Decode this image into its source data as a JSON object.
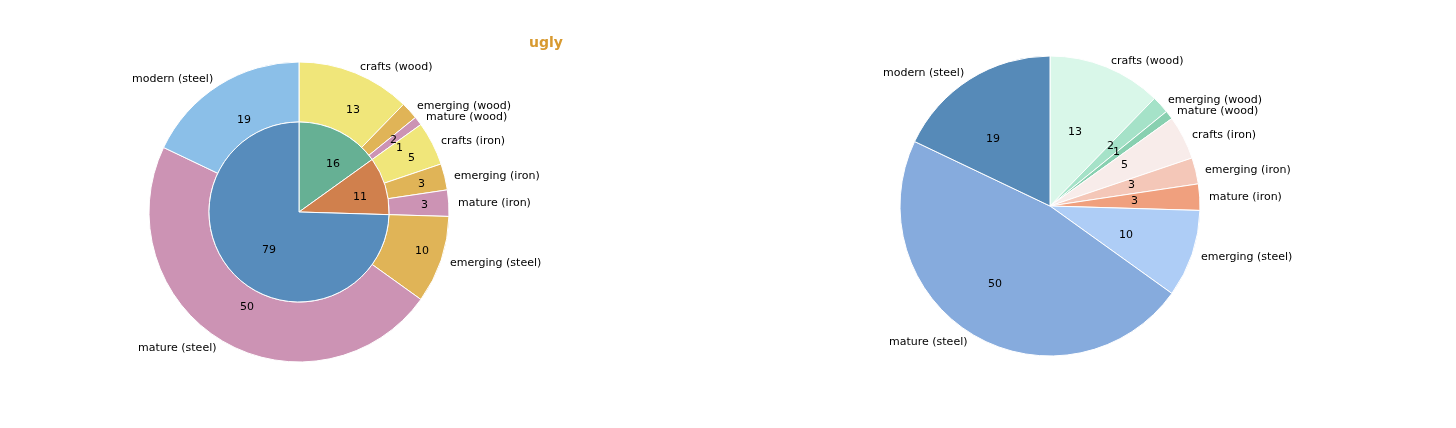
{
  "chart_data": [
    {
      "type": "donut",
      "categories": [
        "crafts (wood)",
        "emerging (wood)",
        "mature (wood)",
        "crafts (iron)",
        "emerging (iron)",
        "mature (iron)",
        "emerging (steel)",
        "mature (steel)",
        "modern (steel)"
      ],
      "series": [
        {
          "values": [
            13,
            2,
            1,
            5,
            3,
            3,
            10,
            50,
            19
          ],
          "colors": [
            "#f0e67a",
            "#e0b457",
            "#cc93b4",
            "#f0e67a",
            "#e0b457",
            "#cc93b4",
            "#e0b457",
            "#cc93b4",
            "#8bbfe8"
          ]
        },
        {
          "values": [
            16,
            null,
            null,
            11,
            null,
            null,
            79,
            null,
            null
          ],
          "colors": [
            "#66b094",
            null,
            null,
            "#d0804d",
            null,
            null,
            "#578cbc",
            null,
            null
          ]
        }
      ],
      "data_labels": true,
      "annotations": [
        "ugly"
      ]
    },
    {
      "type": "pie",
      "categories": [
        "crafts (wood)",
        "emerging (wood)",
        "mature (wood)",
        "crafts (iron)",
        "emerging (iron)",
        "mature (iron)",
        "emerging (steel)",
        "mature (steel)",
        "modern (steel)"
      ],
      "values": [
        13,
        2,
        1,
        5,
        3,
        3,
        10,
        50,
        19
      ],
      "colors": [
        "#d9f7e9",
        "#a5e2c8",
        "#88d0b0",
        "#f8ecea",
        "#f4c7b8",
        "#f0a07e",
        "#aecdf6",
        "#86abdd",
        "#568ab8"
      ],
      "data_labels": true
    }
  ]
}
